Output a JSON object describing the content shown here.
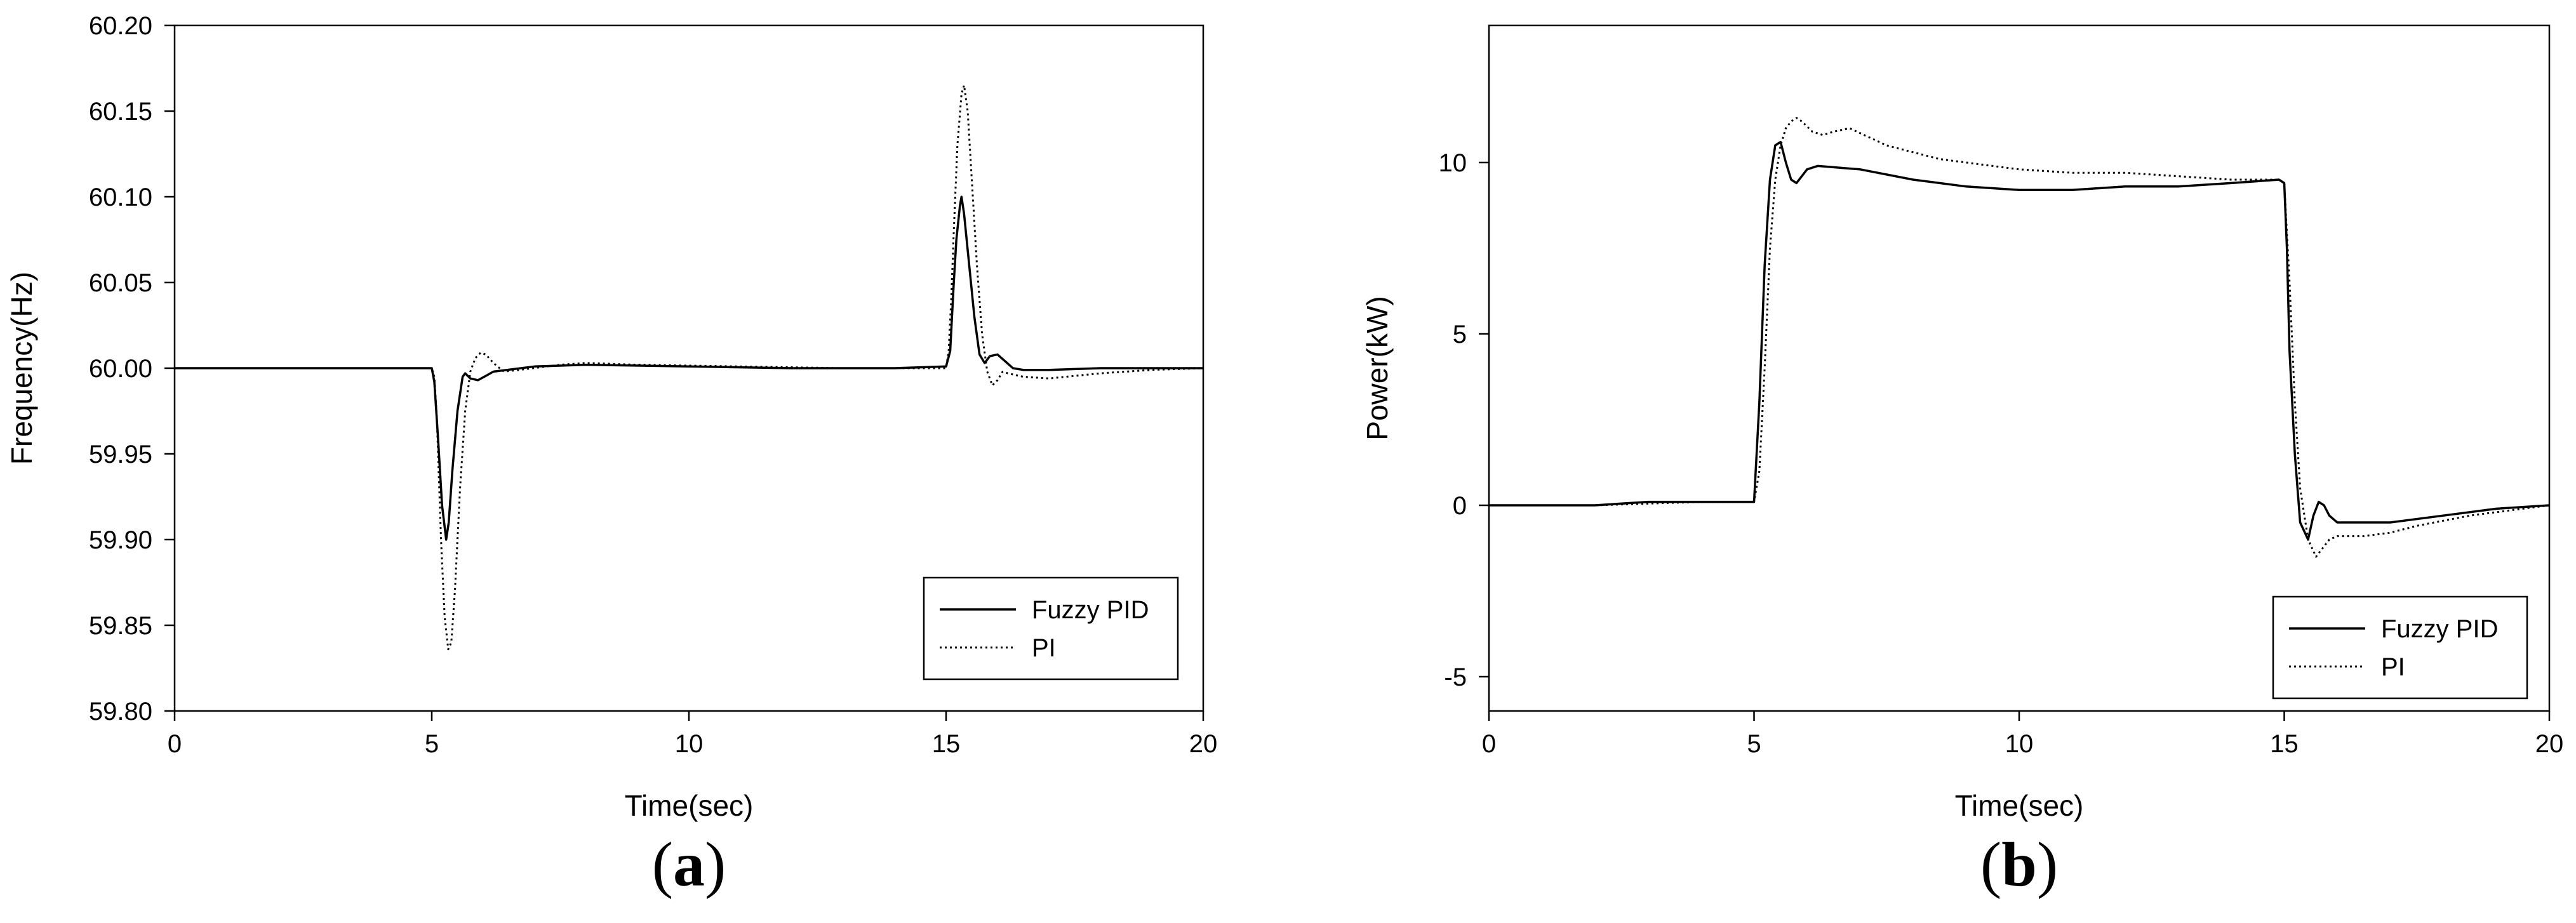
{
  "chart_data": [
    {
      "type": "line",
      "panel_label": "a",
      "xlabel": "Time(sec)",
      "ylabel": "Frequency(Hz)",
      "xlim": [
        0,
        20
      ],
      "ylim": [
        59.8,
        60.2
      ],
      "xticks": [
        "0",
        "5",
        "10",
        "15",
        "20"
      ],
      "yticks": [
        "59.80",
        "59.85",
        "59.90",
        "59.95",
        "60.00",
        "60.05",
        "60.10",
        "60.15",
        "60.20"
      ],
      "legend": {
        "placement": "bottom-right",
        "entries": [
          "Fuzzy PID",
          "PI"
        ]
      },
      "grid": false,
      "series": [
        {
          "name": "Fuzzy PID",
          "style": "solid",
          "x": [
            0,
            2,
            4,
            5.0,
            5.05,
            5.12,
            5.2,
            5.28,
            5.33,
            5.4,
            5.5,
            5.6,
            5.65,
            5.75,
            5.9,
            6.2,
            7,
            8,
            10,
            12,
            14,
            15.0,
            15.08,
            15.15,
            15.2,
            15.27,
            15.3,
            15.35,
            15.45,
            15.55,
            15.65,
            15.75,
            15.85,
            16.0,
            16.15,
            16.3,
            16.5,
            17,
            18,
            20
          ],
          "values": [
            60.0,
            60.0,
            60.0,
            60.0,
            59.992,
            59.96,
            59.92,
            59.9,
            59.91,
            59.94,
            59.975,
            59.995,
            59.997,
            59.994,
            59.993,
            59.998,
            60.001,
            60.002,
            60.001,
            60.0,
            60.0,
            60.001,
            60.01,
            60.05,
            60.075,
            60.095,
            60.1,
            60.09,
            60.06,
            60.03,
            60.008,
            60.003,
            60.007,
            60.008,
            60.004,
            60.0,
            59.999,
            59.999,
            60.0,
            60.0
          ]
        },
        {
          "name": "PI",
          "style": "dotted",
          "x": [
            0,
            2,
            4,
            5.0,
            5.05,
            5.1,
            5.18,
            5.25,
            5.32,
            5.38,
            5.45,
            5.55,
            5.65,
            5.75,
            5.85,
            5.95,
            6.05,
            6.2,
            6.4,
            6.7,
            7.5,
            8,
            9,
            11,
            13,
            15.0,
            15.05,
            15.1,
            15.15,
            15.22,
            15.3,
            15.35,
            15.42,
            15.5,
            15.6,
            15.7,
            15.8,
            15.9,
            16.0,
            16.1,
            16.2,
            16.5,
            17,
            18,
            19,
            20
          ],
          "values": [
            60.0,
            60.0,
            60.0,
            60.0,
            59.995,
            59.97,
            59.9,
            59.855,
            59.836,
            59.84,
            59.87,
            59.93,
            59.975,
            59.998,
            60.006,
            60.009,
            60.008,
            60.003,
            59.998,
            59.999,
            60.002,
            60.003,
            60.002,
            60.001,
            60.0,
            60.0,
            60.01,
            60.04,
            60.08,
            60.13,
            60.16,
            60.165,
            60.15,
            60.11,
            60.06,
            60.02,
            59.998,
            59.99,
            59.993,
            59.998,
            59.997,
            59.995,
            59.994,
            59.997,
            59.999,
            60.0
          ]
        }
      ]
    },
    {
      "type": "line",
      "panel_label": "b",
      "xlabel": "Time(sec)",
      "ylabel": "Power(kW)",
      "xlim": [
        0,
        20
      ],
      "ylim": [
        -6,
        14
      ],
      "xticks": [
        "0",
        "5",
        "10",
        "15",
        "20"
      ],
      "yticks": [
        "-5",
        "0",
        "5",
        "10"
      ],
      "legend": {
        "placement": "bottom-right",
        "entries": [
          "Fuzzy PID",
          "PI"
        ]
      },
      "grid": false,
      "series": [
        {
          "name": "Fuzzy PID",
          "style": "solid",
          "x": [
            0,
            1,
            2,
            3,
            4,
            5.0,
            5.1,
            5.2,
            5.3,
            5.4,
            5.5,
            5.6,
            5.7,
            5.8,
            6.0,
            6.2,
            7,
            8,
            9,
            10,
            11,
            12,
            13,
            14,
            14.9,
            15.0,
            15.05,
            15.1,
            15.2,
            15.3,
            15.45,
            15.55,
            15.65,
            15.75,
            15.85,
            16.0,
            16.3,
            17,
            18,
            19,
            20
          ],
          "values": [
            0.0,
            0.0,
            0.0,
            0.1,
            0.1,
            0.1,
            3.0,
            7.0,
            9.5,
            10.5,
            10.6,
            10.0,
            9.5,
            9.4,
            9.8,
            9.9,
            9.8,
            9.5,
            9.3,
            9.2,
            9.2,
            9.3,
            9.3,
            9.4,
            9.5,
            9.4,
            7.5,
            4.5,
            1.5,
            -0.5,
            -1.0,
            -0.3,
            0.1,
            0.0,
            -0.3,
            -0.5,
            -0.5,
            -0.5,
            -0.3,
            -0.1,
            0.0
          ]
        },
        {
          "name": "PI",
          "style": "dotted",
          "x": [
            0,
            2,
            4,
            5.0,
            5.1,
            5.2,
            5.3,
            5.4,
            5.5,
            5.6,
            5.7,
            5.8,
            5.9,
            6.1,
            6.3,
            6.5,
            6.8,
            7.5,
            8.5,
            10,
            11,
            12,
            13,
            14,
            14.9,
            15.0,
            15.1,
            15.2,
            15.3,
            15.45,
            15.6,
            15.7,
            15.85,
            16.0,
            16.5,
            17,
            17.5,
            18.5,
            19.5,
            20
          ],
          "values": [
            0.0,
            0.0,
            0.1,
            0.1,
            1.0,
            4.0,
            7.5,
            9.5,
            10.5,
            11.0,
            11.2,
            11.3,
            11.2,
            10.9,
            10.8,
            10.9,
            11.0,
            10.5,
            10.1,
            9.8,
            9.7,
            9.7,
            9.6,
            9.5,
            9.5,
            9.4,
            6.5,
            3.0,
            0.5,
            -1.0,
            -1.5,
            -1.3,
            -1.0,
            -0.9,
            -0.9,
            -0.8,
            -0.6,
            -0.3,
            -0.1,
            0.0
          ]
        }
      ]
    }
  ]
}
